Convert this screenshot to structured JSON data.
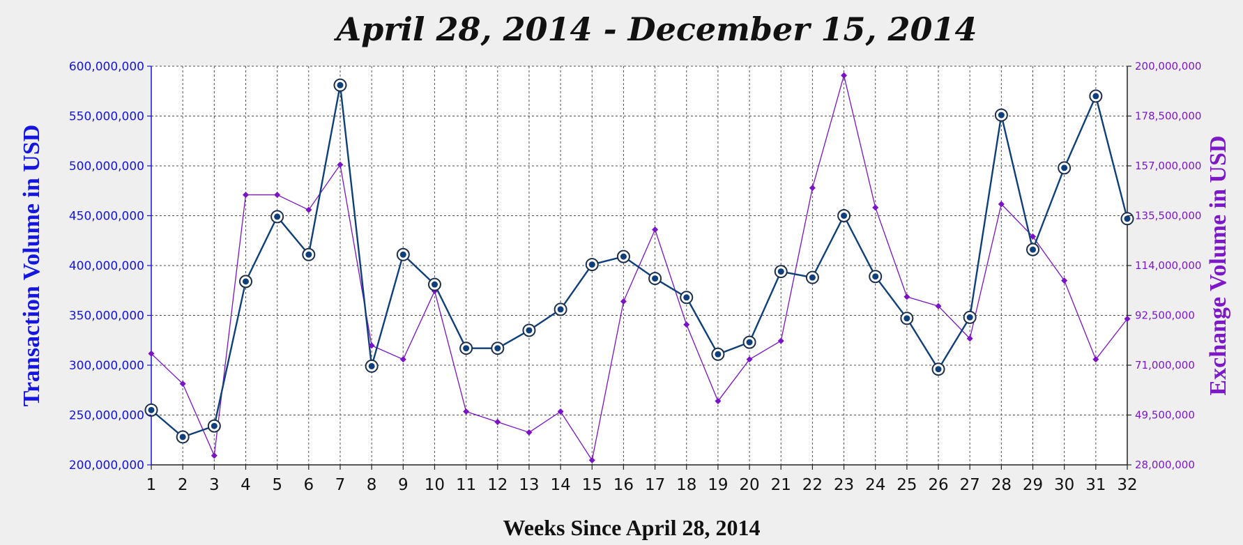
{
  "chart_data": {
    "type": "line",
    "title": "April 28, 2014 - December 15, 2014",
    "xlabel": "Weeks Since April 28, 2014",
    "ylabel_left": "Transaction Volume in USD",
    "ylabel_right": "Exchange Volume in USD",
    "x": [
      1,
      2,
      3,
      4,
      5,
      6,
      7,
      8,
      9,
      10,
      11,
      12,
      13,
      14,
      15,
      16,
      17,
      18,
      19,
      20,
      21,
      22,
      23,
      24,
      25,
      26,
      27,
      28,
      29,
      30,
      31,
      32
    ],
    "xlim": [
      1,
      32
    ],
    "ylim_left": [
      200000000,
      600000000
    ],
    "ylim_right": [
      28000000,
      200000000
    ],
    "left_ticks": [
      {
        "value": 200000000,
        "label": "200,000,000"
      },
      {
        "value": 250000000,
        "label": "250,000,000"
      },
      {
        "value": 300000000,
        "label": "300,000,000"
      },
      {
        "value": 350000000,
        "label": "350,000,000"
      },
      {
        "value": 400000000,
        "label": "400,000,000"
      },
      {
        "value": 450000000,
        "label": "450,000,000"
      },
      {
        "value": 500000000,
        "label": "500,000,000"
      },
      {
        "value": 550000000,
        "label": "550,000,000"
      },
      {
        "value": 600000000,
        "label": "600,000,000"
      }
    ],
    "right_ticks": [
      {
        "value": 28000000,
        "label": "28,000,000"
      },
      {
        "value": 49500000,
        "label": "49,500,000"
      },
      {
        "value": 71000000,
        "label": "71,000,000"
      },
      {
        "value": 92500000,
        "label": "92,500,000"
      },
      {
        "value": 114000000,
        "label": "114,000,000"
      },
      {
        "value": 135500000,
        "label": "135,500,000"
      },
      {
        "value": 157000000,
        "label": "157,000,000"
      },
      {
        "value": 178500000,
        "label": "178,500,000"
      },
      {
        "value": 200000000,
        "label": "200,000,000"
      }
    ],
    "grid": true,
    "colors": {
      "transaction": "#0e3f7a",
      "exchange": "#7a12c8",
      "left_axis": "#1515e0",
      "right_axis": "#7c18c8",
      "grid": "#505050",
      "background": "#ffffff",
      "page": "#efefef"
    },
    "series": [
      {
        "axis": "left",
        "marker": "circle",
        "values": [
          255000000,
          228000000,
          239000000,
          384000000,
          449000000,
          411000000,
          581000000,
          299000000,
          411000000,
          381000000,
          317000000,
          317000000,
          335000000,
          356000000,
          401000000,
          409000000,
          387000000,
          368000000,
          311000000,
          323000000,
          394000000,
          388000000,
          450000000,
          389000000,
          347000000,
          296000000,
          348000000,
          551000000,
          416000000,
          498000000,
          570000000,
          447000000
        ]
      },
      {
        "axis": "right",
        "marker": "diamond",
        "values": [
          76000000,
          63000000,
          32000000,
          144500000,
          144500000,
          138000000,
          157500000,
          79500000,
          73500000,
          103000000,
          51000000,
          46500000,
          42000000,
          51000000,
          30000000,
          98500000,
          129500000,
          88500000,
          55500000,
          73500000,
          81500000,
          147500000,
          196000000,
          139000000,
          100500000,
          96500000,
          82500000,
          140500000,
          126500000,
          107500000,
          73500000,
          91000000
        ]
      }
    ]
  }
}
